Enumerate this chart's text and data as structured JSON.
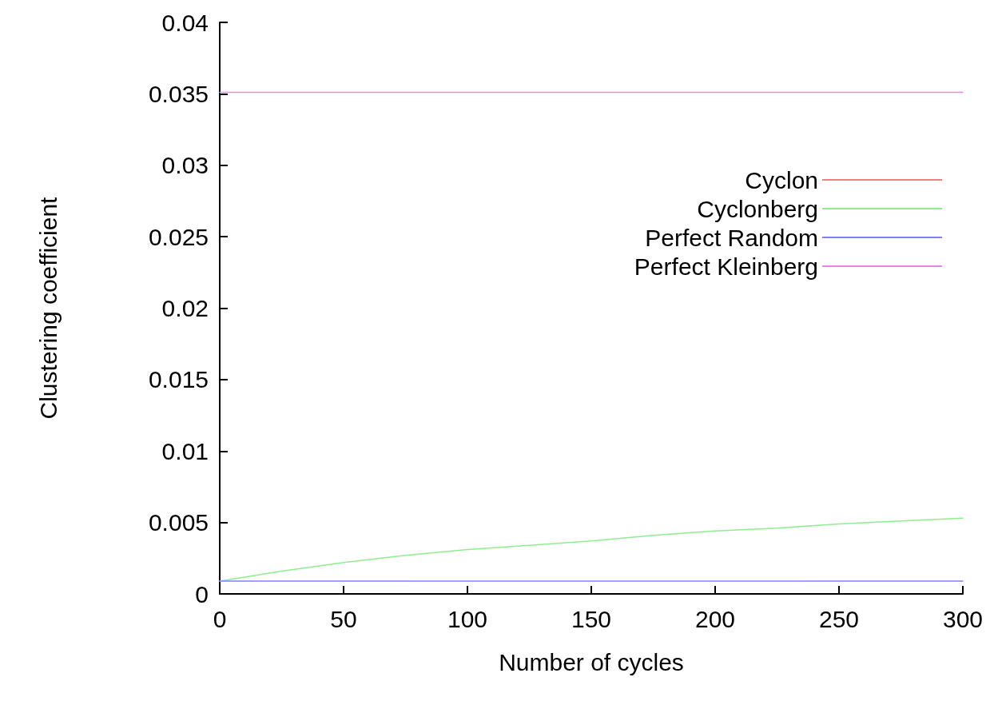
{
  "chart_data": {
    "type": "line",
    "xlabel": "Number of cycles",
    "ylabel": "Clustering coefficient",
    "xlim": [
      0,
      300
    ],
    "xticks": [
      0,
      50,
      100,
      150,
      200,
      250,
      300
    ],
    "ylim": [
      0,
      0.04
    ],
    "yticks": [
      0,
      0.005,
      0.01,
      0.015,
      0.02,
      0.025,
      0.03,
      0.035,
      0.04
    ],
    "grid": false,
    "legend": "right",
    "marker": "none",
    "line_style": "solid",
    "series": [
      {
        "name": "Cyclon",
        "color": "#f08080",
        "values": [
          null
        ]
      },
      {
        "name": "Cyclonberg",
        "color": "#90ee90",
        "x": [
          0,
          25,
          50,
          75,
          100,
          125,
          150,
          175,
          200,
          225,
          250,
          275,
          300
        ],
        "values": [
          0.0009,
          0.0016,
          0.0022,
          0.0027,
          0.0031,
          0.0034,
          0.0037,
          0.0041,
          0.0044,
          0.0046,
          0.0049,
          0.0051,
          0.0053
        ]
      },
      {
        "name": "Perfect Random",
        "color": "#8080ff",
        "x": [
          0,
          300
        ],
        "values": [
          0.0009,
          0.0009
        ]
      },
      {
        "name": "Perfect Kleinberg",
        "color": "#ee82ee",
        "x": [
          0,
          300
        ],
        "values": [
          0.0351,
          0.0351
        ]
      }
    ]
  }
}
